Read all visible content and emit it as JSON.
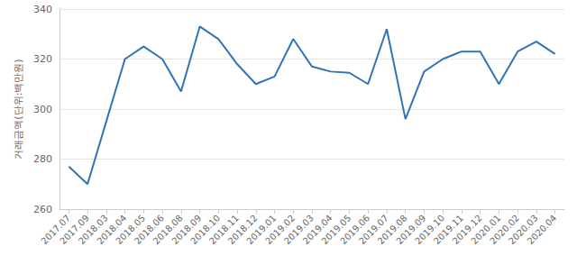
{
  "chart_data": {
    "type": "line",
    "y_label": "거래금액(단위:백만원)",
    "categories": [
      "2017.07",
      "2017.09",
      "2018.03",
      "2018.04",
      "2018.05",
      "2018.06",
      "2018.08",
      "2018.09",
      "2018.10",
      "2018.11",
      "2018.12",
      "2019.01",
      "2019.02",
      "2019.03",
      "2019.04",
      "2019.05",
      "2019.06",
      "2019.07",
      "2019.08",
      "2019.09",
      "2019.10",
      "2019.11",
      "2019.12",
      "2020.01",
      "2020.02",
      "2020.03",
      "2020.04"
    ],
    "values": [
      277,
      270,
      295,
      320,
      325,
      320,
      307,
      333,
      328,
      318,
      310,
      313,
      328,
      317,
      315,
      314.5,
      310,
      332,
      296,
      315,
      320,
      323,
      323,
      310,
      323,
      327,
      322
    ],
    "color": "#2f75b5",
    "ylim": [
      260,
      340
    ],
    "yticks": [
      260,
      280,
      300,
      320,
      340
    ],
    "grid": true
  }
}
